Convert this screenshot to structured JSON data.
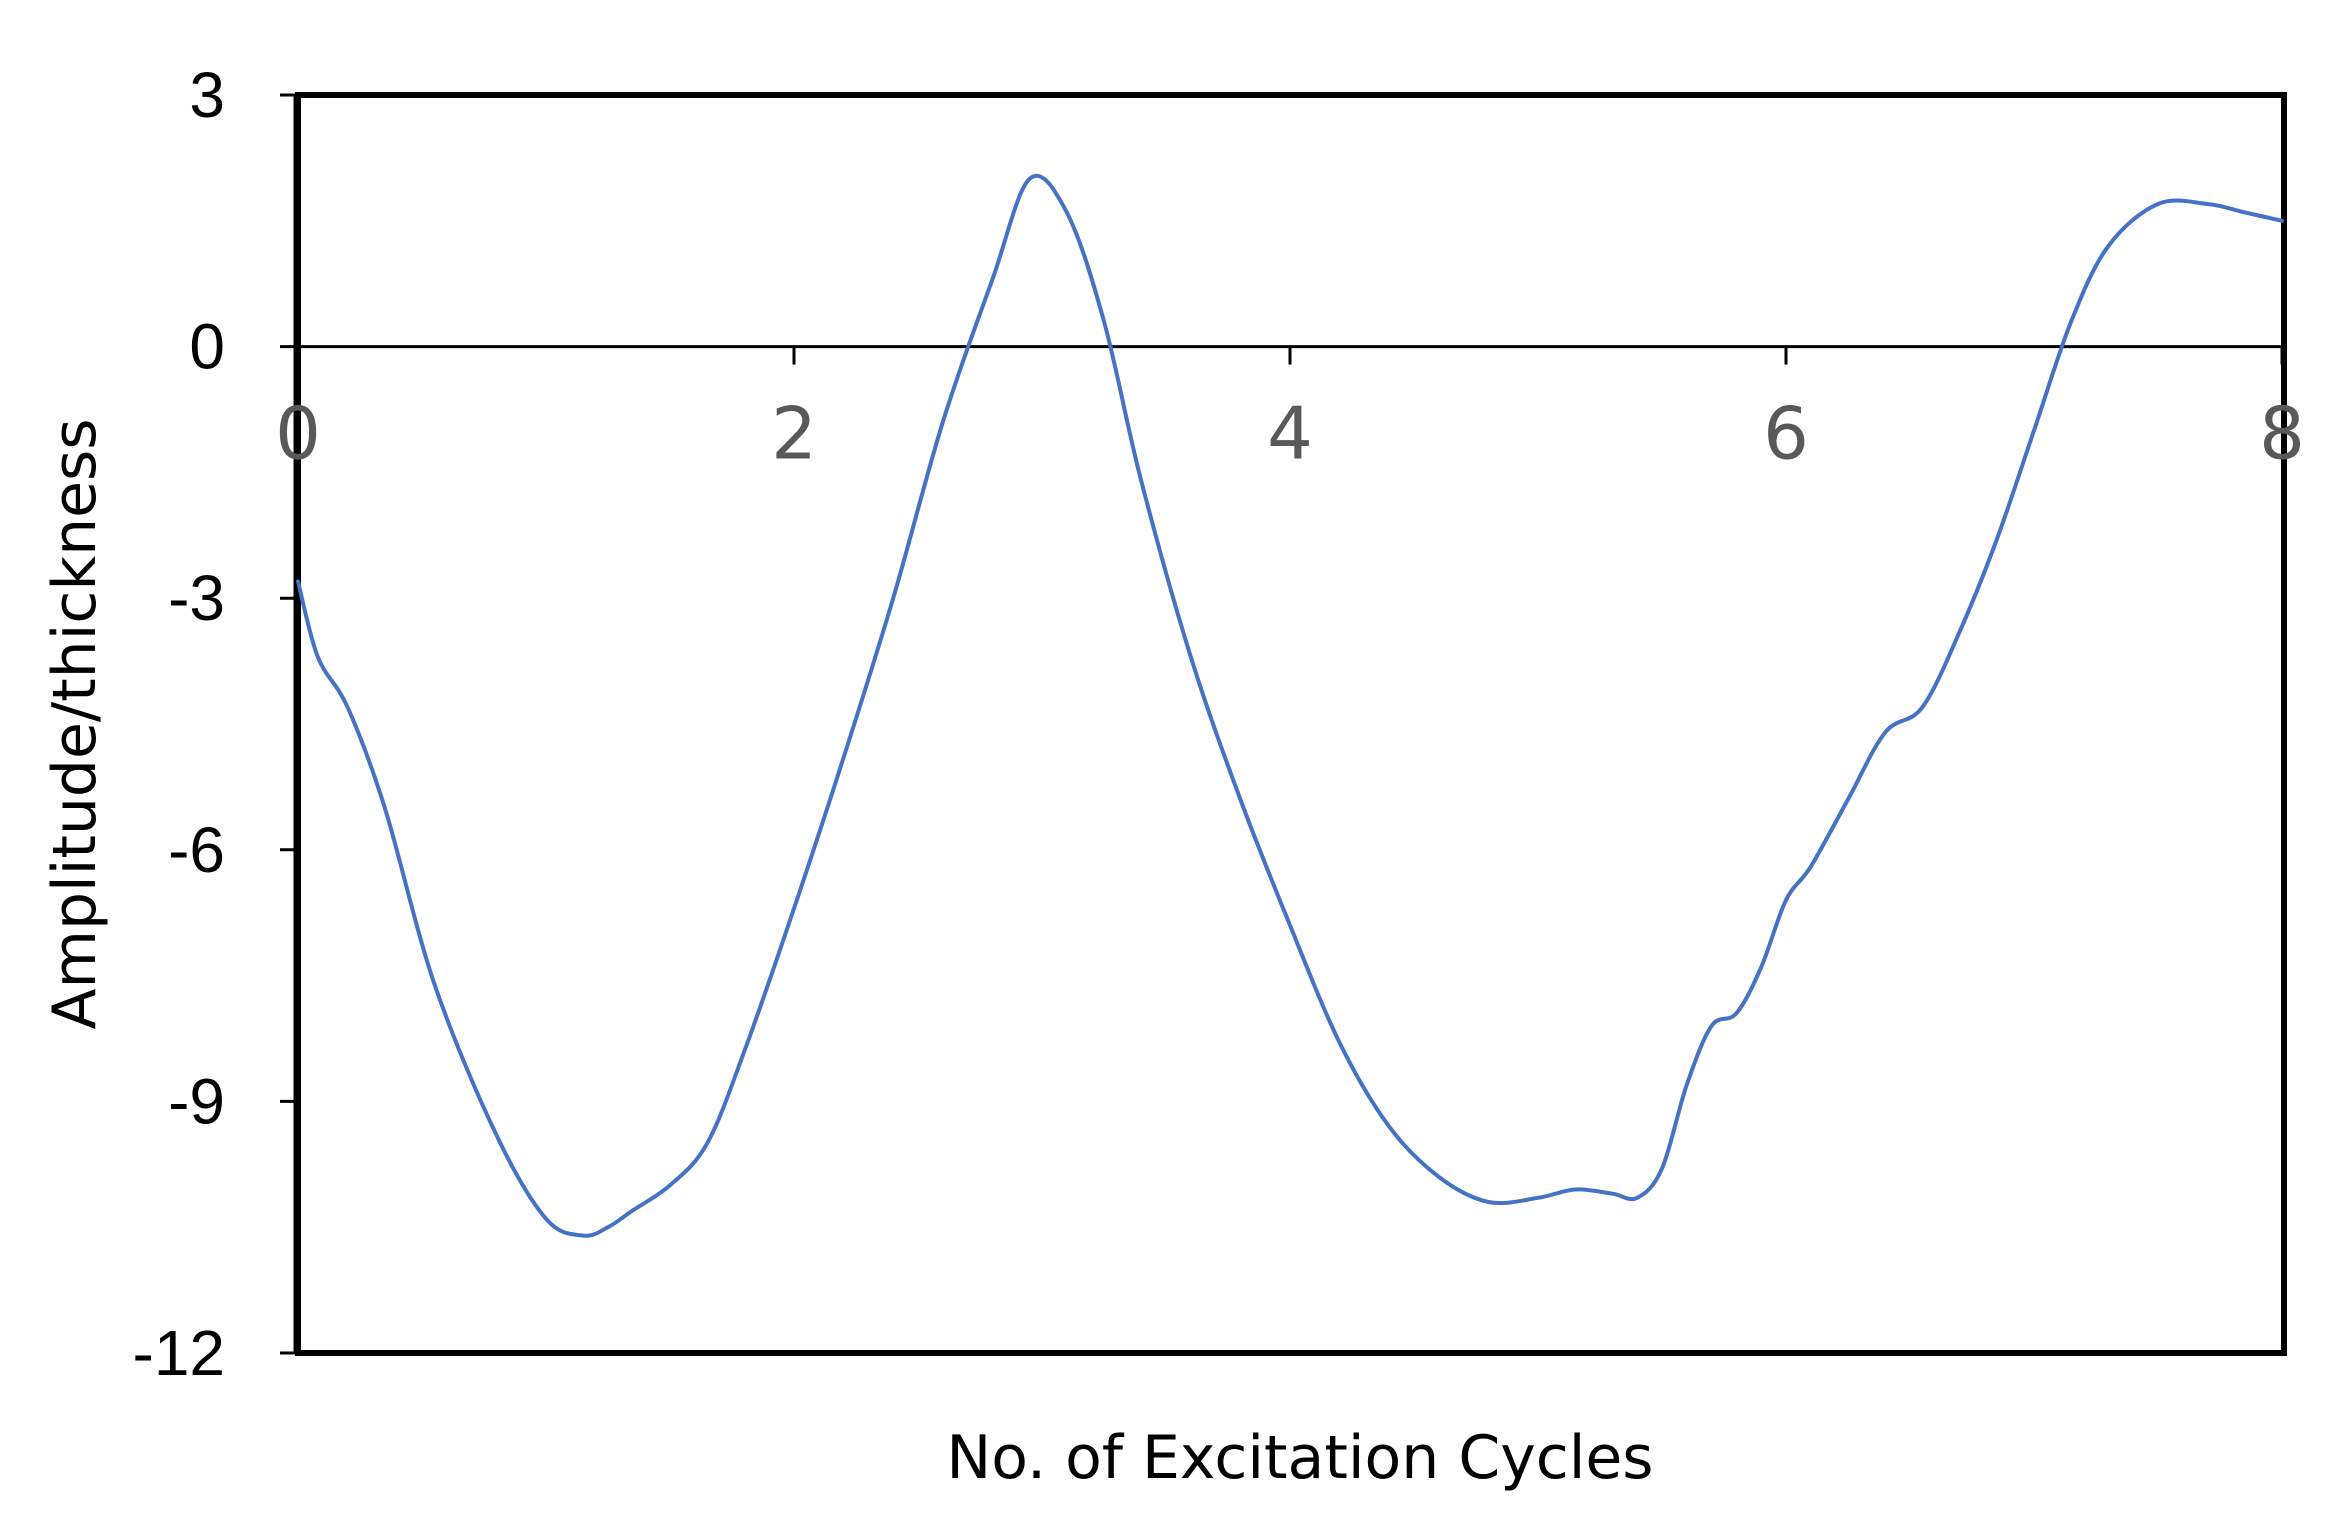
{
  "chart_data": {
    "type": "line",
    "title": "",
    "xlabel": "No. of Excitation Cycles",
    "ylabel": "Amplitude/thickness",
    "xlim": [
      0,
      8
    ],
    "ylim": [
      -12,
      3
    ],
    "grid": false,
    "legend": "none",
    "x_ticks": [
      0,
      2,
      4,
      6,
      8
    ],
    "y_ticks": [
      3,
      0,
      -3,
      -6,
      -9,
      -12
    ],
    "x_tick_labels": [
      "0",
      "2",
      "4",
      "6",
      "8"
    ],
    "y_tick_labels": [
      "3",
      "0",
      "-3",
      "-6",
      "-9",
      "-12"
    ],
    "line_color": "#4472C4",
    "series": [
      {
        "name": "Amplitude/thickness",
        "x": [
          0,
          0.08,
          0.2,
          0.35,
          0.55,
          0.8,
          1.0,
          1.15,
          1.25,
          1.35,
          1.5,
          1.65,
          1.8,
          2.0,
          2.2,
          2.4,
          2.6,
          2.8,
          2.95,
          3.1,
          3.25,
          3.4,
          3.6,
          3.8,
          4.0,
          4.2,
          4.4,
          4.6,
          4.8,
          5.0,
          5.15,
          5.3,
          5.4,
          5.5,
          5.6,
          5.7,
          5.8,
          5.9,
          6.0,
          6.1,
          6.25,
          6.4,
          6.55,
          6.7,
          6.85,
          7.0,
          7.15,
          7.3,
          7.5,
          7.7,
          7.85,
          8.0
        ],
        "y": [
          -2.8,
          -3.7,
          -4.3,
          -5.5,
          -7.6,
          -9.4,
          -10.4,
          -10.6,
          -10.5,
          -10.3,
          -10.0,
          -9.5,
          -8.4,
          -6.7,
          -4.9,
          -3.0,
          -0.9,
          0.8,
          2.0,
          1.6,
          0.3,
          -1.6,
          -3.7,
          -5.4,
          -6.9,
          -8.3,
          -9.3,
          -9.9,
          -10.2,
          -10.15,
          -10.05,
          -10.1,
          -10.15,
          -9.8,
          -8.8,
          -8.1,
          -7.95,
          -7.4,
          -6.6,
          -6.2,
          -5.4,
          -4.6,
          -4.3,
          -3.4,
          -2.3,
          -1.0,
          0.3,
          1.2,
          1.7,
          1.7,
          1.6,
          1.5
        ]
      }
    ]
  }
}
